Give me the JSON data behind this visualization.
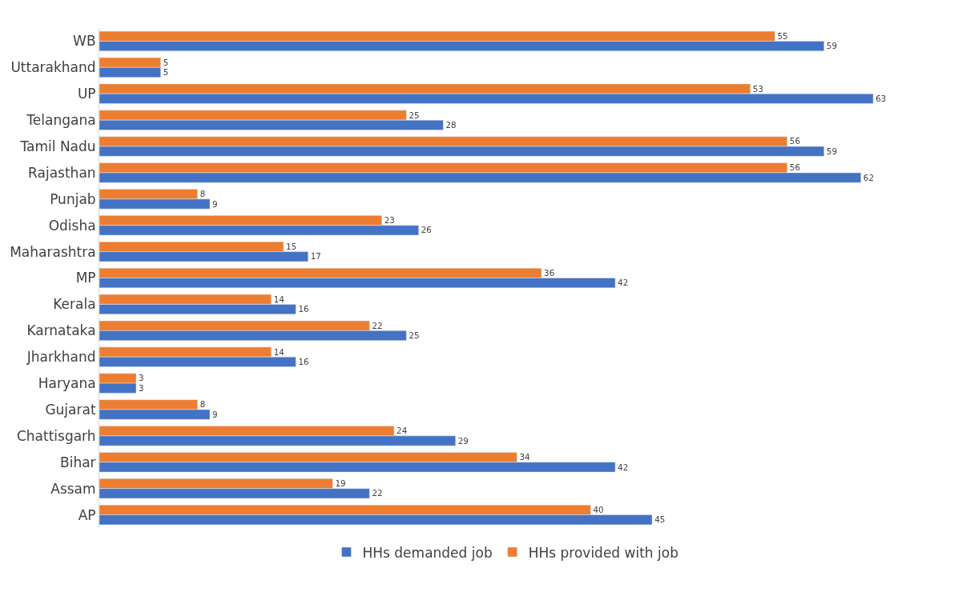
{
  "chart_data": {
    "type": "bar",
    "orientation": "horizontal",
    "categories": [
      "WB",
      "Uttarakhand",
      "UP",
      "Telangana",
      "Tamil Nadu",
      "Rajasthan",
      "Punjab",
      "Odisha",
      "Maharashtra",
      "MP",
      "Kerala",
      "Karnataka",
      "Jharkhand",
      "Haryana",
      "Gujarat",
      "Chattisgarh",
      "Bihar",
      "Assam",
      "AP"
    ],
    "series": [
      {
        "name": "HHs demanded job",
        "color": "#4472c4",
        "values": [
          59,
          5,
          63,
          28,
          59,
          62,
          9,
          26,
          17,
          42,
          16,
          25,
          16,
          3,
          9,
          29,
          42,
          22,
          45
        ]
      },
      {
        "name": "HHs provided with job",
        "color": "#ed7d31",
        "values": [
          55,
          5,
          53,
          25,
          56,
          56,
          8,
          23,
          15,
          36,
          14,
          22,
          14,
          3,
          8,
          24,
          34,
          19,
          40
        ]
      }
    ],
    "data_labels": true,
    "legend": "bottom"
  }
}
